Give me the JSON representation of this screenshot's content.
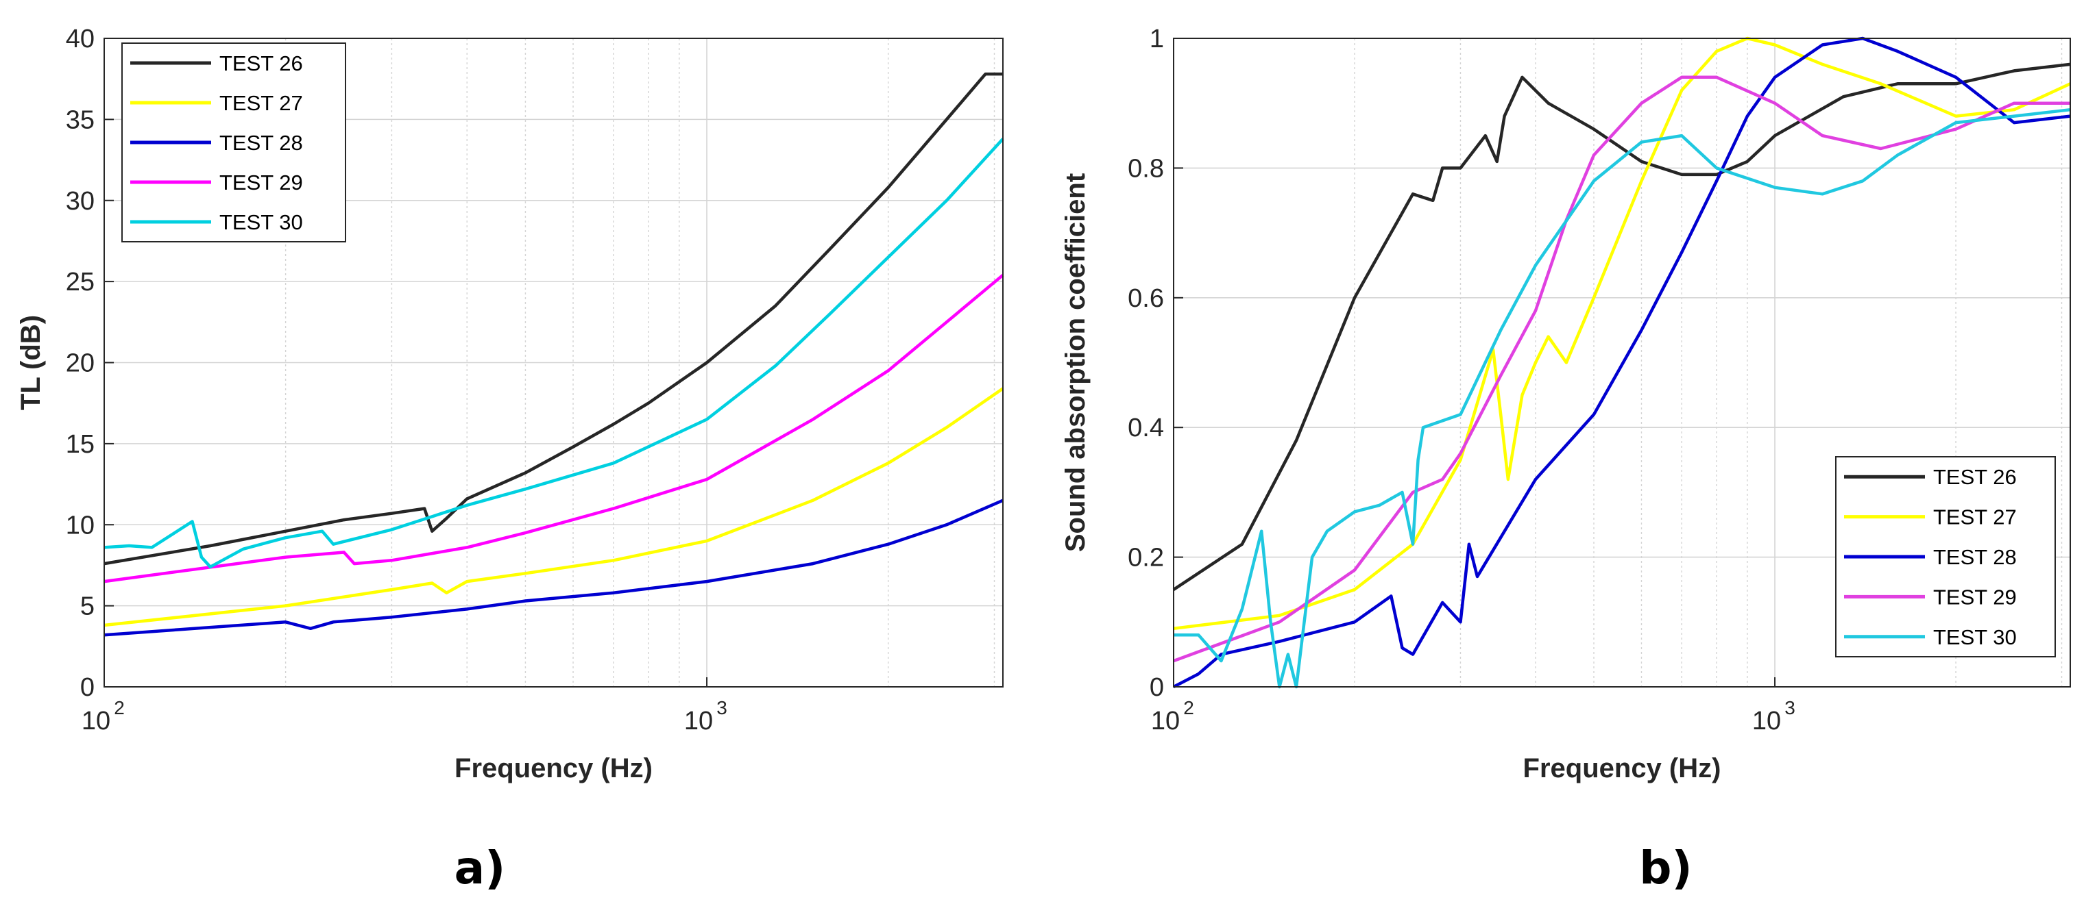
{
  "chart_data": [
    {
      "type": "line",
      "panel_label": "a)",
      "xlabel": "Frequency (Hz)",
      "ylabel": "TL (dB)",
      "xscale": "log",
      "xlim": [
        100,
        3100
      ],
      "ylim": [
        0,
        40
      ],
      "yticks": [
        "0",
        "5",
        "10",
        "15",
        "20",
        "25",
        "30",
        "35",
        "40"
      ],
      "xticks": [
        {
          "value": 100,
          "base": "10",
          "exp": "2"
        },
        {
          "value": 1000,
          "base": "10",
          "exp": "3"
        }
      ],
      "grid": true,
      "legend": "top-left",
      "series": [
        {
          "name": "TEST 26",
          "color": "#262626",
          "x": [
            100,
            150,
            200,
            250,
            300,
            340,
            350,
            370,
            400,
            500,
            600,
            700,
            800,
            1000,
            1300,
            1600,
            2000,
            2500,
            2900,
            3100
          ],
          "y": [
            7.6,
            8.7,
            9.6,
            10.3,
            10.7,
            11.0,
            9.6,
            10.4,
            11.6,
            13.2,
            14.8,
            16.2,
            17.5,
            20.0,
            23.5,
            27.0,
            30.8,
            35.0,
            37.8,
            37.8
          ]
        },
        {
          "name": "TEST 27",
          "color": "#ffff00",
          "x": [
            100,
            200,
            300,
            350,
            370,
            400,
            500,
            700,
            1000,
            1500,
            2000,
            2500,
            3100
          ],
          "y": [
            3.8,
            5.0,
            6.0,
            6.4,
            5.8,
            6.5,
            7.0,
            7.8,
            9.0,
            11.5,
            13.8,
            16.0,
            18.4
          ]
        },
        {
          "name": "TEST 28",
          "color": "#0000d0",
          "x": [
            100,
            200,
            220,
            240,
            300,
            400,
            500,
            700,
            1000,
            1500,
            2000,
            2500,
            3100
          ],
          "y": [
            3.2,
            4.0,
            3.6,
            4.0,
            4.3,
            4.8,
            5.3,
            5.8,
            6.5,
            7.6,
            8.8,
            10.0,
            11.5
          ]
        },
        {
          "name": "TEST 29",
          "color": "#ff00ff",
          "x": [
            100,
            200,
            250,
            260,
            300,
            400,
            500,
            700,
            1000,
            1500,
            2000,
            2500,
            3100
          ],
          "y": [
            6.5,
            8.0,
            8.3,
            7.6,
            7.8,
            8.6,
            9.5,
            11.0,
            12.8,
            16.5,
            19.5,
            22.5,
            25.4
          ]
        },
        {
          "name": "TEST 30",
          "color": "#00d0e0",
          "x": [
            100,
            110,
            120,
            140,
            145,
            150,
            170,
            200,
            230,
            240,
            300,
            400,
            500,
            700,
            1000,
            1300,
            1600,
            2000,
            2500,
            3100
          ],
          "y": [
            8.6,
            8.7,
            8.6,
            10.2,
            8.0,
            7.4,
            8.5,
            9.2,
            9.6,
            8.8,
            9.7,
            11.2,
            12.2,
            13.8,
            16.5,
            19.8,
            23.0,
            26.5,
            30.0,
            33.8
          ]
        }
      ]
    },
    {
      "type": "line",
      "panel_label": "b)",
      "xlabel": "Frequency (Hz)",
      "ylabel": "Sound absorption coefficient",
      "xscale": "log",
      "xlim": [
        100,
        3100
      ],
      "ylim": [
        0,
        1
      ],
      "yticks": [
        "0",
        "0.2",
        "0.4",
        "0.6",
        "0.8",
        "1"
      ],
      "xticks": [
        {
          "value": 100,
          "base": "10",
          "exp": "2"
        },
        {
          "value": 1000,
          "base": "10",
          "exp": "3"
        }
      ],
      "grid": true,
      "legend": "bottom-right",
      "series": [
        {
          "name": "TEST 26",
          "color": "#262626",
          "x": [
            100,
            130,
            160,
            200,
            250,
            270,
            280,
            300,
            330,
            345,
            355,
            380,
            420,
            500,
            600,
            700,
            800,
            900,
            1000,
            1300,
            1600,
            2000,
            2500,
            3100
          ],
          "y": [
            0.15,
            0.22,
            0.38,
            0.6,
            0.76,
            0.75,
            0.8,
            0.8,
            0.85,
            0.81,
            0.88,
            0.94,
            0.9,
            0.86,
            0.81,
            0.79,
            0.79,
            0.81,
            0.85,
            0.91,
            0.93,
            0.93,
            0.95,
            0.96
          ]
        },
        {
          "name": "TEST 27",
          "color": "#ffff00",
          "x": [
            100,
            150,
            200,
            250,
            300,
            340,
            350,
            360,
            380,
            400,
            420,
            450,
            500,
            600,
            700,
            800,
            900,
            1000,
            1200,
            1500,
            2000,
            2500,
            3100
          ],
          "y": [
            0.09,
            0.11,
            0.15,
            0.22,
            0.35,
            0.52,
            0.42,
            0.32,
            0.45,
            0.5,
            0.54,
            0.5,
            0.6,
            0.78,
            0.92,
            0.98,
            1.0,
            0.99,
            0.96,
            0.93,
            0.88,
            0.89,
            0.93
          ]
        },
        {
          "name": "TEST 28",
          "color": "#0000d0",
          "x": [
            100,
            110,
            120,
            150,
            200,
            230,
            240,
            250,
            280,
            300,
            310,
            320,
            400,
            500,
            600,
            700,
            800,
            900,
            1000,
            1200,
            1400,
            1600,
            2000,
            2500,
            3100
          ],
          "y": [
            0.0,
            0.02,
            0.05,
            0.07,
            0.1,
            0.14,
            0.06,
            0.05,
            0.13,
            0.1,
            0.22,
            0.17,
            0.32,
            0.42,
            0.55,
            0.67,
            0.78,
            0.88,
            0.94,
            0.99,
            1.0,
            0.98,
            0.94,
            0.87,
            0.88
          ]
        },
        {
          "name": "TEST 29",
          "color": "#e040e0",
          "x": [
            100,
            150,
            200,
            250,
            280,
            300,
            350,
            400,
            450,
            500,
            600,
            700,
            800,
            1000,
            1200,
            1500,
            2000,
            2500,
            3100
          ],
          "y": [
            0.04,
            0.1,
            0.18,
            0.3,
            0.32,
            0.36,
            0.48,
            0.58,
            0.72,
            0.82,
            0.9,
            0.94,
            0.94,
            0.9,
            0.85,
            0.83,
            0.86,
            0.9,
            0.9
          ]
        },
        {
          "name": "TEST 30",
          "color": "#20c8e0",
          "x": [
            100,
            110,
            120,
            130,
            140,
            145,
            150,
            155,
            160,
            170,
            180,
            200,
            220,
            240,
            250,
            255,
            260,
            300,
            350,
            400,
            500,
            600,
            700,
            800,
            1000,
            1200,
            1400,
            1600,
            2000,
            2500,
            3100
          ],
          "y": [
            0.08,
            0.08,
            0.04,
            0.12,
            0.24,
            0.1,
            0.0,
            0.05,
            0.0,
            0.2,
            0.24,
            0.27,
            0.28,
            0.3,
            0.22,
            0.35,
            0.4,
            0.42,
            0.55,
            0.65,
            0.78,
            0.84,
            0.85,
            0.8,
            0.77,
            0.76,
            0.78,
            0.82,
            0.87,
            0.88,
            0.89
          ]
        }
      ]
    }
  ]
}
